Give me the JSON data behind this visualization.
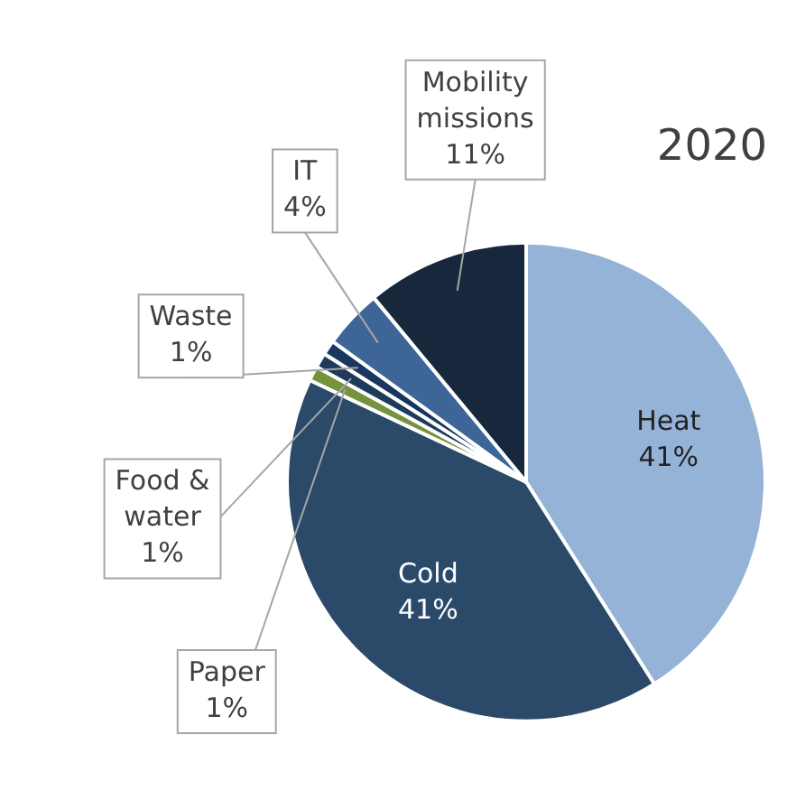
{
  "chart_data": {
    "type": "pie",
    "title": "2020",
    "categories": [
      "Heat",
      "Cold",
      "Paper",
      "Food & water",
      "Waste",
      "IT",
      "Mobility missions"
    ],
    "values": [
      41,
      41,
      1,
      1,
      1,
      4,
      11
    ],
    "value_labels": [
      "41%",
      "41%",
      "1%",
      "1%",
      "1%",
      "4%",
      "11%"
    ],
    "colors": [
      "#95b3d7",
      "#2b4a69",
      "#76923c",
      "#1f3b5a",
      "#17375e",
      "#3d6598",
      "#17283d"
    ],
    "legend": false
  }
}
